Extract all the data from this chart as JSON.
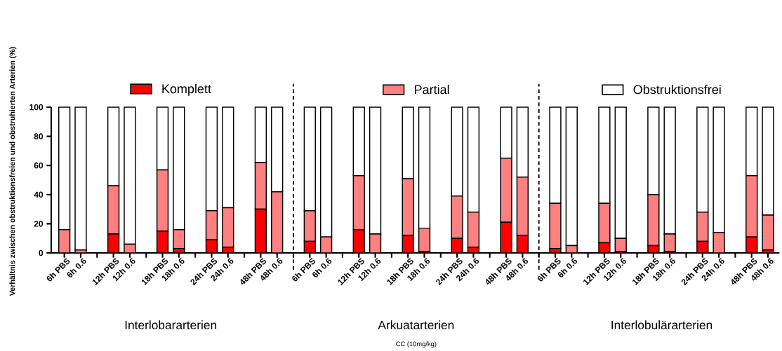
{
  "chart_data": {
    "type": "bar",
    "stacked": true,
    "ylabel": "Verhältnis zwischen obstruktionsfreien und obstruhierten Arterien (%)",
    "categories": [
      "6h PBS",
      "6h 0.6",
      null,
      "12h PBS",
      "12h 0.6",
      null,
      "18h PBS",
      "18h 0.6",
      null,
      "24h PBS",
      "24h 0.6",
      null,
      "48h PBS",
      "48h 0.6",
      null,
      "6h PBS",
      "6h 0.6",
      null,
      "12h PBS",
      "12h 0.6",
      null,
      "18h PBS",
      "18h 0.6",
      null,
      "24h PBS",
      "24h 0.6",
      null,
      "48h PBS",
      "48h 0.6",
      null,
      "6h PBS",
      "6h 0.6",
      null,
      "12h PBS",
      "12h 0.6",
      null,
      "18h PBS",
      "18h 0.6",
      null,
      "24h PBS",
      "24h 0.6",
      null,
      "48h PBS",
      "48h 0.6"
    ],
    "series": [
      {
        "name": "Komplett",
        "color": "#ff0000",
        "values": [
          0,
          0,
          null,
          13,
          0,
          null,
          15,
          3,
          null,
          9,
          4,
          null,
          30,
          0,
          null,
          8,
          0,
          null,
          16,
          0,
          null,
          12,
          1,
          null,
          10,
          4,
          null,
          21,
          12,
          null,
          3,
          0,
          null,
          7,
          1,
          null,
          5,
          1,
          null,
          8,
          0,
          null,
          11,
          2
        ]
      },
      {
        "name": "Partial",
        "color": "#ff8080",
        "values": [
          16,
          2,
          null,
          33,
          6,
          null,
          42,
          13,
          null,
          20,
          27,
          null,
          32,
          42,
          null,
          21,
          11,
          null,
          37,
          13,
          null,
          39,
          16,
          null,
          29,
          24,
          null,
          44,
          40,
          null,
          31,
          5,
          null,
          27,
          9,
          null,
          35,
          12,
          null,
          20,
          14,
          null,
          42,
          24
        ]
      },
      {
        "name": "Obstruktionsfrei",
        "color": "#ffffff",
        "values": [
          84,
          98,
          null,
          54,
          94,
          null,
          43,
          84,
          null,
          71,
          69,
          null,
          38,
          58,
          null,
          71,
          89,
          null,
          47,
          87,
          null,
          49,
          83,
          null,
          61,
          72,
          null,
          35,
          48,
          null,
          66,
          95,
          null,
          66,
          90,
          null,
          60,
          87,
          null,
          72,
          86,
          null,
          47,
          74
        ]
      }
    ],
    "ylim": [
      0,
      100
    ],
    "yticks": [
      0,
      20,
      40,
      60,
      80,
      100
    ],
    "legend": "top",
    "annotations": [
      "Interlobararterien",
      "Arkuatarterien",
      "Interlobulärarterien",
      "CC (10mg/kg)"
    ]
  }
}
